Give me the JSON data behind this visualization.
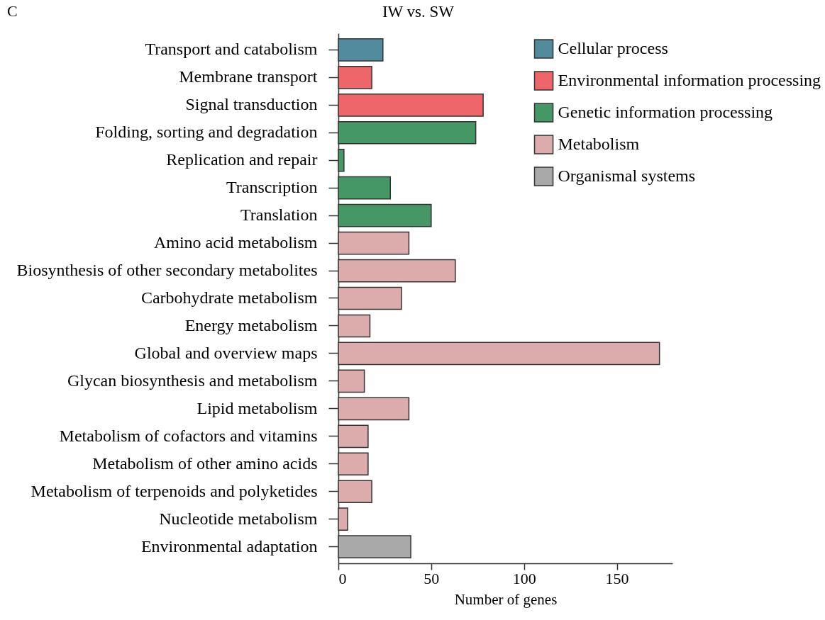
{
  "chart_data": {
    "type": "bar",
    "orientation": "horizontal",
    "title": "IW vs. SW",
    "xlabel": "Number of genes",
    "annotations": [
      "C"
    ],
    "categories": [
      "Transport and catabolism",
      "Membrane transport",
      "Signal transduction",
      "Folding, sorting and degradation",
      "Replication and repair",
      "Transcription",
      "Translation",
      "Amino acid metabolism",
      "Biosynthesis of other secondary metabolites",
      "Carbohydrate metabolism",
      "Energy metabolism",
      "Global and overview maps",
      "Glycan biosynthesis and metabolism",
      "Lipid metabolism",
      "Metabolism of cofactors and vitamins",
      "Metabolism of other amino acids",
      "Metabolism of terpenoids and polyketides",
      "Nucleotide metabolism",
      "Environmental adaptation"
    ],
    "series": [
      {
        "name": "Cellular process",
        "color": "#528a9e",
        "values": [
          24,
          null,
          null,
          null,
          null,
          null,
          null,
          null,
          null,
          null,
          null,
          null,
          null,
          null,
          null,
          null,
          null,
          null,
          null
        ]
      },
      {
        "name": "Environmental information processing",
        "color": "#ef666a",
        "values": [
          null,
          18,
          78,
          null,
          null,
          null,
          null,
          null,
          null,
          null,
          null,
          null,
          null,
          null,
          null,
          null,
          null,
          null,
          null
        ]
      },
      {
        "name": "Genetic information processing",
        "color": "#459866",
        "values": [
          null,
          null,
          null,
          74,
          3,
          28,
          50,
          null,
          null,
          null,
          null,
          null,
          null,
          null,
          null,
          null,
          null,
          null,
          null
        ]
      },
      {
        "name": "Metabolism",
        "color": "#dcabab",
        "values": [
          null,
          null,
          null,
          null,
          null,
          null,
          null,
          38,
          63,
          34,
          17,
          173,
          14,
          38,
          16,
          16,
          18,
          5,
          null
        ]
      },
      {
        "name": "Organismal systems",
        "color": "#a9a9a9",
        "values": [
          null,
          null,
          null,
          null,
          null,
          null,
          null,
          null,
          null,
          null,
          null,
          null,
          null,
          null,
          null,
          null,
          null,
          null,
          39
        ]
      }
    ],
    "xlim": [
      0,
      180
    ],
    "xticks": [
      0,
      50,
      100,
      150
    ],
    "legend": "top right"
  }
}
